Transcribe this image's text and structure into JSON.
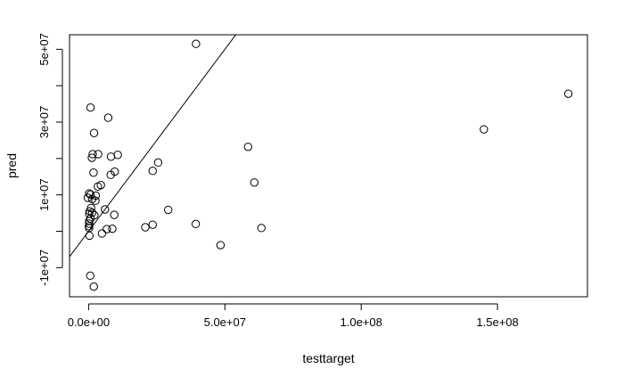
{
  "chart_data": {
    "type": "scatter",
    "title": "",
    "xlabel": "testtarget",
    "ylabel": "pred",
    "xlim": [
      -7000000,
      183000000
    ],
    "ylim": [
      -18000000,
      54000000
    ],
    "x_ticks": [
      {
        "value": 0,
        "label": "0.0e+00"
      },
      {
        "value": 50000000,
        "label": "5.0e+07"
      },
      {
        "value": 100000000,
        "label": "1.0e+08"
      },
      {
        "value": 150000000,
        "label": "1.5e+08"
      }
    ],
    "y_ticks": [
      {
        "value": -10000000,
        "label": "-1e+07"
      },
      {
        "value": 0,
        "label": ""
      },
      {
        "value": 10000000,
        "label": "1e+07"
      },
      {
        "value": 20000000,
        "label": ""
      },
      {
        "value": 30000000,
        "label": "3e+07"
      },
      {
        "value": 40000000,
        "label": ""
      },
      {
        "value": 50000000,
        "label": "5e+07"
      }
    ],
    "reference_line": {
      "slope": 1,
      "intercept": 0
    },
    "points": [
      {
        "x": 39400000,
        "y": 51500000
      },
      {
        "x": 176000000,
        "y": 37800000
      },
      {
        "x": 145000000,
        "y": 28000000
      },
      {
        "x": 700000,
        "y": 34000000
      },
      {
        "x": 7200000,
        "y": 31200000
      },
      {
        "x": 2000000,
        "y": 27000000
      },
      {
        "x": 58500000,
        "y": 23200000
      },
      {
        "x": 1500000,
        "y": 21200000
      },
      {
        "x": 3500000,
        "y": 21200000
      },
      {
        "x": 10700000,
        "y": 21000000
      },
      {
        "x": 8200000,
        "y": 20500000
      },
      {
        "x": 1200000,
        "y": 20200000
      },
      {
        "x": 25500000,
        "y": 18900000
      },
      {
        "x": 23500000,
        "y": 16600000
      },
      {
        "x": 9600000,
        "y": 16400000
      },
      {
        "x": 1800000,
        "y": 16100000
      },
      {
        "x": 8100000,
        "y": 15500000
      },
      {
        "x": 60800000,
        "y": 13400000
      },
      {
        "x": 4500000,
        "y": 12700000
      },
      {
        "x": 3400000,
        "y": 12300000
      },
      {
        "x": 200000,
        "y": 10400000
      },
      {
        "x": 700000,
        "y": 10100000
      },
      {
        "x": 2600000,
        "y": 9800000
      },
      {
        "x": -300000,
        "y": 9200000
      },
      {
        "x": 1300000,
        "y": 8900000
      },
      {
        "x": 2500000,
        "y": 8400000
      },
      {
        "x": 900000,
        "y": 6400000
      },
      {
        "x": 6000000,
        "y": 6000000
      },
      {
        "x": 29200000,
        "y": 5900000
      },
      {
        "x": 400000,
        "y": 5500000
      },
      {
        "x": 1300000,
        "y": 5100000
      },
      {
        "x": 200000,
        "y": 4800000
      },
      {
        "x": 9400000,
        "y": 4500000
      },
      {
        "x": 2100000,
        "y": 4400000
      },
      {
        "x": 700000,
        "y": 3500000
      },
      {
        "x": 200000,
        "y": 2800000
      },
      {
        "x": 200000,
        "y": 2100000
      },
      {
        "x": 39300000,
        "y": 2000000
      },
      {
        "x": 23500000,
        "y": 1800000
      },
      {
        "x": 100000,
        "y": 1400000
      },
      {
        "x": 20800000,
        "y": 1100000
      },
      {
        "x": 200000,
        "y": 900000
      },
      {
        "x": 63400000,
        "y": 900000
      },
      {
        "x": 8700000,
        "y": 700000
      },
      {
        "x": 6700000,
        "y": 600000
      },
      {
        "x": 4900000,
        "y": -600000
      },
      {
        "x": 300000,
        "y": -1200000
      },
      {
        "x": 48400000,
        "y": -3800000
      },
      {
        "x": 600000,
        "y": -12200000
      },
      {
        "x": 1900000,
        "y": -15200000
      }
    ]
  }
}
